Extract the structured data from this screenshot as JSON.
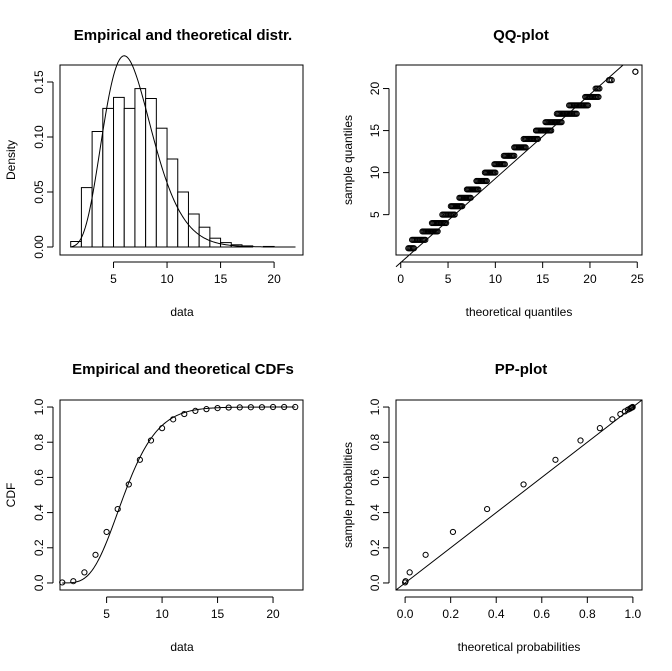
{
  "chart_data": [
    {
      "id": "hist",
      "type": "bar",
      "title": "Empirical and theoretical distr.",
      "xlabel": "data",
      "ylabel": "Density",
      "xlim": [
        0,
        22.7
      ],
      "ylim": [
        0,
        0.16
      ],
      "xticks": [
        5,
        10,
        15,
        20
      ],
      "yticks": [
        0.0,
        0.05,
        0.1,
        0.15
      ],
      "ytick_labels": [
        "0.00",
        "0.05",
        "0.10",
        "0.15"
      ],
      "bins": [
        {
          "x0": 1,
          "x1": 2,
          "value": 0.005
        },
        {
          "x0": 2,
          "x1": 3,
          "value": 0.054
        },
        {
          "x0": 3,
          "x1": 4,
          "value": 0.105
        },
        {
          "x0": 4,
          "x1": 5,
          "value": 0.126
        },
        {
          "x0": 5,
          "x1": 6,
          "value": 0.136
        },
        {
          "x0": 6,
          "x1": 7,
          "value": 0.126
        },
        {
          "x0": 7,
          "x1": 8,
          "value": 0.144
        },
        {
          "x0": 8,
          "x1": 9,
          "value": 0.135
        },
        {
          "x0": 9,
          "x1": 10,
          "value": 0.108
        },
        {
          "x0": 10,
          "x1": 11,
          "value": 0.08
        },
        {
          "x0": 11,
          "x1": 12,
          "value": 0.05
        },
        {
          "x0": 12,
          "x1": 13,
          "value": 0.03
        },
        {
          "x0": 13,
          "x1": 14,
          "value": 0.018
        },
        {
          "x0": 14,
          "x1": 15,
          "value": 0.008
        },
        {
          "x0": 15,
          "x1": 16,
          "value": 0.004
        },
        {
          "x0": 16,
          "x1": 17,
          "value": 0.002
        },
        {
          "x0": 17,
          "x1": 18,
          "value": 0.001
        },
        {
          "x0": 19,
          "x1": 20,
          "value": 0.0005
        }
      ],
      "density_curve": {
        "distribution": "gamma",
        "shape": 8,
        "scale": 0.8571,
        "x_range": [
          1,
          22
        ]
      }
    },
    {
      "id": "qq",
      "type": "scatter",
      "title": "QQ-plot",
      "xlabel": "theoretical quantiles",
      "ylabel": "sample quantiles",
      "xlim": [
        -0.5,
        25.5
      ],
      "ylim": [
        0.2,
        22.8
      ],
      "xticks": [
        0,
        5,
        10,
        15,
        20,
        25
      ],
      "yticks": [
        5,
        10,
        15,
        20
      ],
      "sample_levels": [
        1,
        2,
        3,
        4,
        5,
        6,
        7,
        8,
        9,
        10,
        11,
        12,
        13,
        14,
        15,
        16,
        17,
        18,
        19,
        20,
        21,
        22
      ],
      "theoretical_ranges": [
        [
          0.8,
          1.4
        ],
        [
          1.2,
          2.6
        ],
        [
          2.3,
          3.9
        ],
        [
          3.3,
          4.8
        ],
        [
          4.4,
          5.7
        ],
        [
          5.3,
          6.5
        ],
        [
          6.2,
          7.4
        ],
        [
          7.0,
          8.2
        ],
        [
          8.0,
          9.1
        ],
        [
          8.9,
          10.0
        ],
        [
          9.9,
          11.0
        ],
        [
          10.9,
          12.0
        ],
        [
          12.0,
          13.2
        ],
        [
          13.0,
          14.5
        ],
        [
          14.3,
          15.9
        ],
        [
          15.3,
          17.0
        ],
        [
          16.5,
          18.6
        ],
        [
          17.8,
          19.8
        ],
        [
          19.5,
          20.9
        ],
        [
          20.6,
          21.0
        ],
        [
          22.0,
          22.3
        ],
        [
          24.8,
          24.8
        ]
      ],
      "reference_line": {
        "slope": 1,
        "intercept": -0.7
      }
    },
    {
      "id": "cdf",
      "type": "scatter",
      "title": "Empirical and theoretical CDFs",
      "xlabel": "data",
      "ylabel": "CDF",
      "xlim": [
        0.8,
        22.7
      ],
      "ylim": [
        -0.04,
        1.04
      ],
      "xticks": [
        5,
        10,
        15,
        20
      ],
      "yticks": [
        0.0,
        0.2,
        0.4,
        0.6,
        0.8,
        1.0
      ],
      "ytick_labels": [
        "0.0",
        "0.2",
        "0.4",
        "0.6",
        "0.8",
        "1.0"
      ],
      "points": {
        "x": [
          1,
          2,
          3,
          4,
          5,
          6,
          7,
          8,
          9,
          10,
          11,
          12,
          13,
          14,
          15,
          16,
          17,
          18,
          19,
          20,
          21,
          22
        ],
        "y": [
          0.003,
          0.01,
          0.06,
          0.16,
          0.29,
          0.42,
          0.56,
          0.7,
          0.81,
          0.88,
          0.93,
          0.96,
          0.978,
          0.988,
          0.994,
          0.997,
          0.998,
          0.999,
          0.999,
          1.0,
          1.0,
          1.0
        ]
      },
      "cdf_curve": {
        "distribution": "gamma",
        "shape": 8,
        "scale": 0.8571,
        "x_range": [
          1,
          22
        ]
      }
    },
    {
      "id": "pp",
      "type": "scatter",
      "title": "PP-plot",
      "xlabel": "theoretical probabilities",
      "ylabel": "sample probabilities",
      "xlim": [
        -0.04,
        1.04
      ],
      "ylim": [
        -0.04,
        1.04
      ],
      "xticks": [
        0.0,
        0.2,
        0.4,
        0.6,
        0.8,
        1.0
      ],
      "xtick_labels": [
        "0.0",
        "0.2",
        "0.4",
        "0.6",
        "0.8",
        "1.0"
      ],
      "yticks": [
        0.0,
        0.2,
        0.4,
        0.6,
        0.8,
        1.0
      ],
      "ytick_labels": [
        "0.0",
        "0.2",
        "0.4",
        "0.6",
        "0.8",
        "1.0"
      ],
      "points": {
        "x": [
          0.0,
          0.002,
          0.02,
          0.09,
          0.21,
          0.36,
          0.52,
          0.66,
          0.77,
          0.855,
          0.91,
          0.945,
          0.965,
          0.978,
          0.986,
          0.991,
          0.994,
          0.996,
          0.998,
          0.999
        ],
        "y": [
          0.003,
          0.01,
          0.06,
          0.16,
          0.29,
          0.42,
          0.56,
          0.7,
          0.81,
          0.88,
          0.93,
          0.96,
          0.975,
          0.985,
          0.99,
          0.994,
          0.996,
          0.998,
          0.999,
          1.0
        ]
      },
      "reference_line": {
        "slope": 1,
        "intercept": 0
      }
    }
  ]
}
